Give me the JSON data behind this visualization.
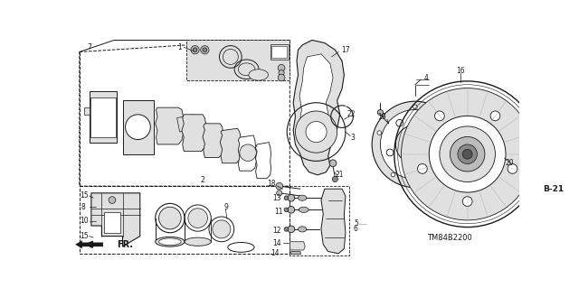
{
  "bg_color": "#ffffff",
  "fig_width": 6.4,
  "fig_height": 3.19,
  "line_color": "#1a1a1a",
  "gray_light": "#e0e0e0",
  "gray_mid": "#bbbbbb",
  "gray_dark": "#888888",
  "part_model": "TM84B2200",
  "ref_label": "B-21",
  "fr_label": "FR."
}
